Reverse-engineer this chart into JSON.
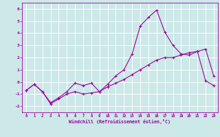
{
  "xlabel": "Windchill (Refroidissement éolien,°C)",
  "bg_color": "#cce8e8",
  "line_color": "#990099",
  "grid_color": "#ffffff",
  "xlim": [
    -0.5,
    23.5
  ],
  "ylim": [
    -2.5,
    6.5
  ],
  "xticks": [
    0,
    1,
    2,
    3,
    4,
    5,
    6,
    7,
    8,
    9,
    10,
    11,
    12,
    13,
    14,
    15,
    16,
    17,
    18,
    19,
    20,
    21,
    22,
    23
  ],
  "yticks": [
    -2,
    -1,
    0,
    1,
    2,
    3,
    4,
    5,
    6
  ],
  "line1_x": [
    0,
    1,
    2,
    3,
    4,
    5,
    6,
    7,
    8,
    9,
    10,
    11,
    12,
    13,
    14,
    15,
    16,
    17,
    18,
    19,
    20,
    21,
    22,
    23
  ],
  "line1_y": [
    -0.7,
    -0.2,
    -0.8,
    -1.7,
    -1.3,
    -0.8,
    -0.1,
    -0.3,
    -0.1,
    -0.8,
    -0.4,
    -0.1,
    0.2,
    0.6,
    1.0,
    1.4,
    1.8,
    2.0,
    2.0,
    2.2,
    2.4,
    2.5,
    0.1,
    -0.3
  ],
  "line2_x": [
    0,
    1,
    2,
    3,
    4,
    5,
    6,
    7,
    8,
    9,
    10,
    11,
    12,
    13,
    14,
    15,
    16,
    17,
    18,
    19,
    20,
    21,
    22,
    23
  ],
  "line2_y": [
    -0.7,
    -0.2,
    -0.8,
    -1.8,
    -1.4,
    -1.0,
    -0.8,
    -1.0,
    -0.9,
    -0.8,
    -0.2,
    0.5,
    1.0,
    2.3,
    4.6,
    5.3,
    5.9,
    4.1,
    3.0,
    2.3,
    2.2,
    2.5,
    2.7,
    0.5
  ],
  "figsize": [
    3.2,
    2.0
  ],
  "dpi": 100
}
